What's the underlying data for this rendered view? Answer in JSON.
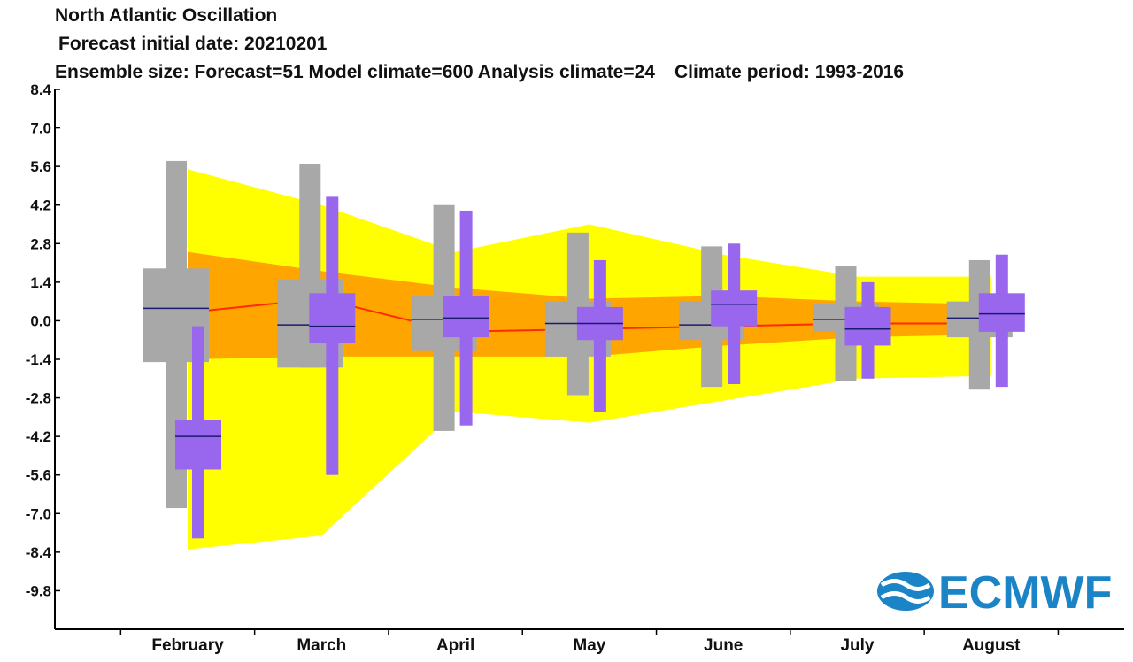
{
  "header": {
    "title": "North Atlantic Oscillation",
    "initial_date": "Forecast initial date: 20210201",
    "ensemble": "Ensemble size: Forecast=51 Model climate=600 Analysis climate=24",
    "climate_period": "Climate period: 1993-2016"
  },
  "logo": {
    "text": "ECMWF",
    "color": "#1a84c7"
  },
  "colors": {
    "climate_outer": "#ffff00",
    "climate_inner": "#ffa500",
    "climate_median": "#ff2a00",
    "model_box": "#a8a8a8",
    "forecast_box": "#9966ee",
    "median_line": "#1a1a6e"
  },
  "chart_data": {
    "type": "box",
    "title": "North Atlantic Oscillation",
    "ylim": [
      -11.2,
      8.4
    ],
    "yticks": [
      "8.4",
      "7.0",
      "5.6",
      "4.2",
      "2.8",
      "1.4",
      "0.0",
      "-1.4",
      "-2.8",
      "-4.2",
      "-5.6",
      "-7.0",
      "-8.4",
      "-9.8"
    ],
    "ytick_values": [
      8.4,
      7.0,
      5.6,
      4.2,
      2.8,
      1.4,
      0.0,
      -1.4,
      -2.8,
      -4.2,
      -5.6,
      -7.0,
      -8.4,
      -9.8
    ],
    "categories": [
      "February",
      "March",
      "April",
      "May",
      "June",
      "July",
      "August"
    ],
    "climate_band": {
      "outer_upper": [
        5.5,
        4.2,
        2.5,
        3.5,
        2.4,
        1.6,
        1.6
      ],
      "outer_lower": [
        -8.3,
        -7.8,
        -3.3,
        -3.7,
        -2.9,
        -2.1,
        -2.0
      ],
      "inner_upper": [
        2.5,
        1.8,
        1.2,
        0.8,
        0.9,
        0.7,
        0.6
      ],
      "inner_lower": [
        -1.4,
        -1.3,
        -1.3,
        -1.3,
        -0.9,
        -0.6,
        -0.5
      ],
      "median": [
        0.3,
        0.8,
        -0.4,
        -0.3,
        -0.2,
        -0.1,
        -0.1
      ]
    },
    "series": [
      {
        "name": "Model climate",
        "min": [
          -6.8,
          -1.7,
          -4.0,
          -2.7,
          -2.4,
          -2.2,
          -2.5
        ],
        "q1": [
          -1.5,
          -1.7,
          -1.1,
          -1.3,
          -0.7,
          -0.4,
          -0.6
        ],
        "median": [
          0.45,
          -0.15,
          0.05,
          -0.1,
          -0.15,
          0.05,
          0.1
        ],
        "q3": [
          1.9,
          1.5,
          0.9,
          0.7,
          0.7,
          0.6,
          0.7
        ],
        "max": [
          5.8,
          5.7,
          4.2,
          3.2,
          2.7,
          2.0,
          2.2
        ]
      },
      {
        "name": "Forecast",
        "min": [
          -7.9,
          -5.6,
          -3.8,
          -3.3,
          -2.3,
          -2.1,
          -2.4
        ],
        "q1": [
          -5.4,
          -0.8,
          -0.6,
          -0.7,
          -0.2,
          -0.9,
          -0.4
        ],
        "median": [
          -4.2,
          -0.2,
          0.1,
          -0.1,
          0.6,
          -0.3,
          0.25
        ],
        "q3": [
          -3.6,
          1.0,
          0.9,
          0.5,
          1.1,
          0.5,
          1.0
        ],
        "max": [
          -0.2,
          4.5,
          4.0,
          2.2,
          2.8,
          1.4,
          2.4
        ]
      }
    ]
  }
}
